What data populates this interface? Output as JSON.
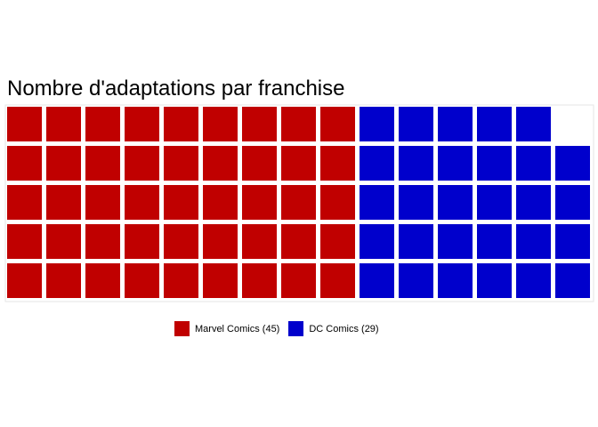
{
  "chart_data": {
    "type": "waffle",
    "title": "Nombre d'adaptations par franchise",
    "rows": 5,
    "series": [
      {
        "name": "Marvel Comics (45)",
        "value": 45,
        "color": "#C00000"
      },
      {
        "name": "DC Comics (29)",
        "value": 29,
        "color": "#0000CC"
      }
    ],
    "legend_position": "bottom",
    "fill_order": "column-wise, bottom to top"
  }
}
